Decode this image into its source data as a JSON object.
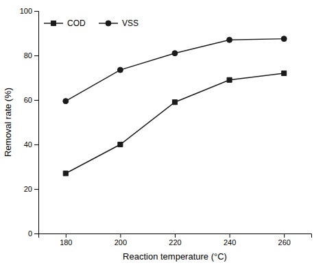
{
  "chart_data": {
    "type": "line",
    "xlabel": "Reaction temperature (°C)",
    "ylabel": "Removal rate (%)",
    "x": [
      180,
      200,
      220,
      240,
      260
    ],
    "series": [
      {
        "name": "COD",
        "color": "#1a1a1a",
        "marker": "square",
        "values": [
          27,
          40,
          59,
          69,
          72
        ]
      },
      {
        "name": "VSS",
        "color": "#1a1a1a",
        "marker": "circle",
        "values": [
          59.5,
          73.5,
          81,
          87,
          87.5
        ]
      }
    ],
    "xlim": [
      170,
      270
    ],
    "ylim": [
      0,
      100
    ],
    "xticks": [
      180,
      200,
      220,
      240,
      260
    ],
    "yticks": [
      0,
      20,
      40,
      60,
      80,
      100
    ],
    "grid": false,
    "legend": "upper left"
  }
}
